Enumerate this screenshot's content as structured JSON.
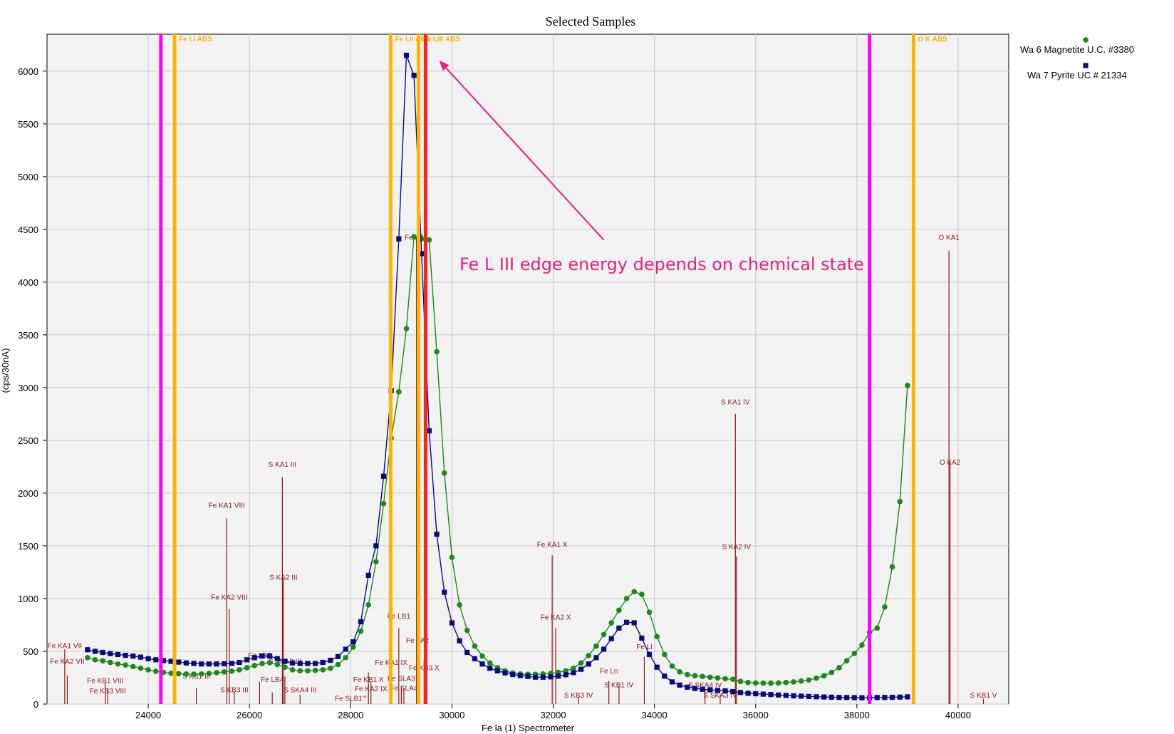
{
  "chart_data": {
    "type": "line",
    "title": "Selected Samples",
    "xlabel": "Fe la (1) Spectrometer",
    "ylabel": "(cps/30nA)",
    "xlim": [
      22000,
      41000
    ],
    "ylim": [
      0,
      6350
    ],
    "x_ticks": [
      24000,
      26000,
      28000,
      30000,
      32000,
      34000,
      36000,
      38000,
      40000
    ],
    "y_ticks": [
      0,
      500,
      1000,
      1500,
      2000,
      2500,
      3000,
      3500,
      4000,
      4500,
      5000,
      5500,
      6000
    ],
    "grid": true,
    "legend_position": "top-right",
    "series": [
      {
        "name": "Wa   6  Magnetite U.C. #3380",
        "color": "#1a8a1a",
        "marker": "circle",
        "points": [
          [
            22800,
            440
          ],
          [
            22950,
            420
          ],
          [
            23100,
            410
          ],
          [
            23250,
            395
          ],
          [
            23400,
            380
          ],
          [
            23550,
            370
          ],
          [
            23700,
            355
          ],
          [
            23850,
            340
          ],
          [
            24000,
            325
          ],
          [
            24150,
            310
          ],
          [
            24300,
            300
          ],
          [
            24450,
            292
          ],
          [
            24600,
            288
          ],
          [
            24750,
            285
          ],
          [
            24900,
            283
          ],
          [
            25050,
            285
          ],
          [
            25200,
            290
          ],
          [
            25350,
            298
          ],
          [
            25500,
            305
          ],
          [
            25650,
            312
          ],
          [
            25800,
            325
          ],
          [
            25950,
            345
          ],
          [
            26100,
            365
          ],
          [
            26250,
            385
          ],
          [
            26400,
            392
          ],
          [
            26550,
            375
          ],
          [
            26700,
            350
          ],
          [
            26850,
            325
          ],
          [
            27000,
            315
          ],
          [
            27150,
            315
          ],
          [
            27300,
            320
          ],
          [
            27450,
            325
          ],
          [
            27600,
            340
          ],
          [
            27750,
            375
          ],
          [
            27900,
            440
          ],
          [
            28050,
            540
          ],
          [
            28200,
            690
          ],
          [
            28350,
            940
          ],
          [
            28500,
            1350
          ],
          [
            28650,
            1900
          ],
          [
            28800,
            2520
          ],
          [
            28950,
            2960
          ],
          [
            29100,
            3560
          ],
          [
            29250,
            4430
          ],
          [
            29400,
            4410
          ],
          [
            29550,
            4400
          ],
          [
            29700,
            3340
          ],
          [
            29850,
            2190
          ],
          [
            30000,
            1390
          ],
          [
            30150,
            940
          ],
          [
            30300,
            700
          ],
          [
            30450,
            550
          ],
          [
            30600,
            455
          ],
          [
            30750,
            390
          ],
          [
            30900,
            345
          ],
          [
            31050,
            315
          ],
          [
            31200,
            295
          ],
          [
            31350,
            285
          ],
          [
            31500,
            282
          ],
          [
            31650,
            282
          ],
          [
            31800,
            285
          ],
          [
            31950,
            290
          ],
          [
            32100,
            300
          ],
          [
            32250,
            315
          ],
          [
            32400,
            340
          ],
          [
            32550,
            390
          ],
          [
            32700,
            460
          ],
          [
            32850,
            550
          ],
          [
            33000,
            660
          ],
          [
            33150,
            770
          ],
          [
            33300,
            890
          ],
          [
            33450,
            1000
          ],
          [
            33600,
            1065
          ],
          [
            33750,
            1040
          ],
          [
            33900,
            870
          ],
          [
            34050,
            640
          ],
          [
            34200,
            470
          ],
          [
            34350,
            360
          ],
          [
            34500,
            305
          ],
          [
            34650,
            280
          ],
          [
            34800,
            270
          ],
          [
            34950,
            262
          ],
          [
            35100,
            255
          ],
          [
            35250,
            248
          ],
          [
            35400,
            240
          ],
          [
            35550,
            235
          ],
          [
            35700,
            215
          ],
          [
            35850,
            205
          ],
          [
            36000,
            200
          ],
          [
            36150,
            198
          ],
          [
            36300,
            198
          ],
          [
            36450,
            200
          ],
          [
            36600,
            205
          ],
          [
            36750,
            210
          ],
          [
            36900,
            218
          ],
          [
            37050,
            228
          ],
          [
            37200,
            245
          ],
          [
            37350,
            268
          ],
          [
            37500,
            300
          ],
          [
            37650,
            345
          ],
          [
            37800,
            410
          ],
          [
            37950,
            480
          ],
          [
            38100,
            560
          ],
          [
            38250,
            680
          ],
          [
            38400,
            720
          ],
          [
            38550,
            920
          ],
          [
            38700,
            1300
          ],
          [
            38850,
            1920
          ],
          [
            39000,
            3020
          ]
        ]
      },
      {
        "name": "Wa   7  Pyrite UC # 21334",
        "color": "#0a0a80",
        "marker": "square",
        "points": [
          [
            22800,
            515
          ],
          [
            22950,
            500
          ],
          [
            23100,
            490
          ],
          [
            23250,
            478
          ],
          [
            23400,
            470
          ],
          [
            23550,
            462
          ],
          [
            23700,
            455
          ],
          [
            23850,
            445
          ],
          [
            24000,
            430
          ],
          [
            24150,
            420
          ],
          [
            24300,
            412
          ],
          [
            24450,
            405
          ],
          [
            24600,
            398
          ],
          [
            24750,
            390
          ],
          [
            24900,
            385
          ],
          [
            25050,
            380
          ],
          [
            25200,
            380
          ],
          [
            25350,
            380
          ],
          [
            25500,
            382
          ],
          [
            25650,
            385
          ],
          [
            25800,
            395
          ],
          [
            25950,
            420
          ],
          [
            26100,
            440
          ],
          [
            26250,
            455
          ],
          [
            26400,
            455
          ],
          [
            26550,
            430
          ],
          [
            26700,
            405
          ],
          [
            26850,
            390
          ],
          [
            27000,
            385
          ],
          [
            27150,
            385
          ],
          [
            27300,
            385
          ],
          [
            27450,
            395
          ],
          [
            27600,
            415
          ],
          [
            27750,
            450
          ],
          [
            27900,
            520
          ],
          [
            28050,
            590
          ],
          [
            28200,
            780
          ],
          [
            28350,
            1220
          ],
          [
            28500,
            1500
          ],
          [
            28650,
            2160
          ],
          [
            28800,
            2970
          ],
          [
            28950,
            4410
          ],
          [
            29100,
            6150
          ],
          [
            29250,
            5960
          ],
          [
            29400,
            4270
          ],
          [
            29550,
            2590
          ],
          [
            29700,
            1610
          ],
          [
            29850,
            1060
          ],
          [
            30000,
            770
          ],
          [
            30150,
            600
          ],
          [
            30300,
            490
          ],
          [
            30450,
            430
          ],
          [
            30600,
            380
          ],
          [
            30750,
            340
          ],
          [
            30900,
            315
          ],
          [
            31050,
            295
          ],
          [
            31200,
            280
          ],
          [
            31350,
            270
          ],
          [
            31500,
            262
          ],
          [
            31650,
            255
          ],
          [
            31800,
            255
          ],
          [
            31950,
            258
          ],
          [
            32100,
            265
          ],
          [
            32250,
            278
          ],
          [
            32400,
            298
          ],
          [
            32550,
            330
          ],
          [
            32700,
            380
          ],
          [
            32850,
            440
          ],
          [
            33000,
            520
          ],
          [
            33150,
            620
          ],
          [
            33300,
            720
          ],
          [
            33450,
            775
          ],
          [
            33600,
            770
          ],
          [
            33750,
            625
          ],
          [
            33900,
            470
          ],
          [
            34050,
            350
          ],
          [
            34200,
            265
          ],
          [
            34350,
            210
          ],
          [
            34500,
            180
          ],
          [
            34650,
            160
          ],
          [
            34800,
            148
          ],
          [
            34950,
            140
          ],
          [
            35100,
            135
          ],
          [
            35250,
            130
          ],
          [
            35400,
            125
          ],
          [
            35550,
            118
          ],
          [
            35700,
            110
          ],
          [
            35850,
            102
          ],
          [
            36000,
            98
          ],
          [
            36150,
            94
          ],
          [
            36300,
            90
          ],
          [
            36450,
            86
          ],
          [
            36600,
            82
          ],
          [
            36750,
            78
          ],
          [
            36900,
            75
          ],
          [
            37050,
            72
          ],
          [
            37200,
            69
          ],
          [
            37350,
            67
          ],
          [
            37500,
            65
          ],
          [
            37650,
            63
          ],
          [
            37800,
            62
          ],
          [
            37950,
            61
          ],
          [
            38100,
            60
          ],
          [
            38250,
            60
          ],
          [
            38400,
            62
          ],
          [
            38550,
            63
          ],
          [
            38700,
            64
          ],
          [
            38850,
            66
          ],
          [
            39000,
            68
          ]
        ]
      }
    ],
    "edges": [
      {
        "x": 24250,
        "label": "",
        "color": "#ff00ff"
      },
      {
        "x": 24520,
        "label": "Fe LI  ABS",
        "color": "#ffb300"
      },
      {
        "x": 28790,
        "label": "Fe LII  ABS",
        "color": "#ffb300"
      },
      {
        "x": 29340,
        "label": "Fe LIII  ABS",
        "color": "#ffb300"
      },
      {
        "x": 29480,
        "label": "",
        "color": "#ff2020"
      },
      {
        "x": 38250,
        "label": "",
        "color": "#ff00ff"
      },
      {
        "x": 39120,
        "label": "O K  ABS",
        "color": "#ffb300"
      }
    ],
    "peak_markers": [
      {
        "x": 22350,
        "h": 520,
        "label": "Fe KA1 VII",
        "ly": 530
      },
      {
        "x": 22400,
        "h": 270,
        "label": "Fe KA2 VII",
        "ly": 380
      },
      {
        "x": 23150,
        "h": 210,
        "label": "Fe KB1 VIII",
        "ly": 200
      },
      {
        "x": 23200,
        "h": 150,
        "label": "Fe KB3 VIII",
        "ly": 100
      },
      {
        "x": 24950,
        "h": 150,
        "label": "S KB1 III",
        "ly": 240
      },
      {
        "x": 25550,
        "h": 1760,
        "label": "Fe KA1 VIII",
        "ly": 1860
      },
      {
        "x": 25600,
        "h": 900,
        "label": "Fe KA2 VIII",
        "ly": 990
      },
      {
        "x": 25700,
        "h": 120,
        "label": "S KB3 III",
        "ly": 110
      },
      {
        "x": 26200,
        "h": 210,
        "label": "Fe LB3",
        "ly": 440
      },
      {
        "x": 26450,
        "h": 110,
        "label": "Fe LB4",
        "ly": 210
      },
      {
        "x": 26650,
        "h": 2150,
        "label": "S KA1 III",
        "ly": 2250
      },
      {
        "x": 26670,
        "h": 1190,
        "label": "S KA2 III",
        "ly": 1180
      },
      {
        "x": 26700,
        "h": 260,
        "label": "S SKA3 III",
        "ly": 380
      },
      {
        "x": 27000,
        "h": 90,
        "label": "S SKA4 III",
        "ly": 110
      },
      {
        "x": 28000,
        "h": 40,
        "label": "Fe SLB1'''",
        "ly": 30
      },
      {
        "x": 28350,
        "h": 300,
        "label": "Fe KB1 X",
        "ly": 210
      },
      {
        "x": 28400,
        "h": 210,
        "label": "Fe KA2 IX",
        "ly": 120
      },
      {
        "x": 28800,
        "h": 270,
        "label": "Fe KA1 IX",
        "ly": 370
      },
      {
        "x": 28950,
        "h": 720,
        "label": "Fe LB1",
        "ly": 810
      },
      {
        "x": 29000,
        "h": 170,
        "label": "Fe SLA3",
        "ly": 220
      },
      {
        "x": 29050,
        "h": 150,
        "label": "Fe SLA4",
        "ly": 130
      },
      {
        "x": 29300,
        "h": 4420,
        "label": "Fe KA1",
        "ly": 4400
      },
      {
        "x": 29320,
        "h": 570,
        "label": "Fe LA2",
        "ly": 580
      },
      {
        "x": 29450,
        "h": 420,
        "label": "Fe KB3 X",
        "ly": 320
      },
      {
        "x": 31980,
        "h": 1410,
        "label": "Fe KA1 X",
        "ly": 1490
      },
      {
        "x": 32050,
        "h": 720,
        "label": "Fe KA2 X",
        "ly": 800
      },
      {
        "x": 32500,
        "h": 70,
        "label": "S KB3 IV",
        "ly": 60
      },
      {
        "x": 33100,
        "h": 220,
        "label": "Fe Ln",
        "ly": 290
      },
      {
        "x": 33300,
        "h": 170,
        "label": "S KB1 IV",
        "ly": 160
      },
      {
        "x": 33800,
        "h": 450,
        "label": "Fe Ll",
        "ly": 520
      },
      {
        "x": 35000,
        "h": 140,
        "label": "S SKA4 IV",
        "ly": 160
      },
      {
        "x": 35300,
        "h": 90,
        "label": "S SKA3 IV",
        "ly": 60
      },
      {
        "x": 35600,
        "h": 2750,
        "label": "S KA1 IV",
        "ly": 2840
      },
      {
        "x": 35620,
        "h": 1400,
        "label": "S KA2 IV",
        "ly": 1470
      },
      {
        "x": 39820,
        "h": 4300,
        "label": "O KA1",
        "ly": 4400
      },
      {
        "x": 39840,
        "h": 2300,
        "label": "O KA2",
        "ly": 2270
      },
      {
        "x": 40500,
        "h": 50,
        "label": "S KB1 V",
        "ly": 60
      }
    ],
    "annotation": {
      "text": "Fe L III edge energy depends on chemical state",
      "arrow_from": [
        33000,
        4400
      ],
      "arrow_to": [
        29750,
        6100
      ]
    }
  }
}
